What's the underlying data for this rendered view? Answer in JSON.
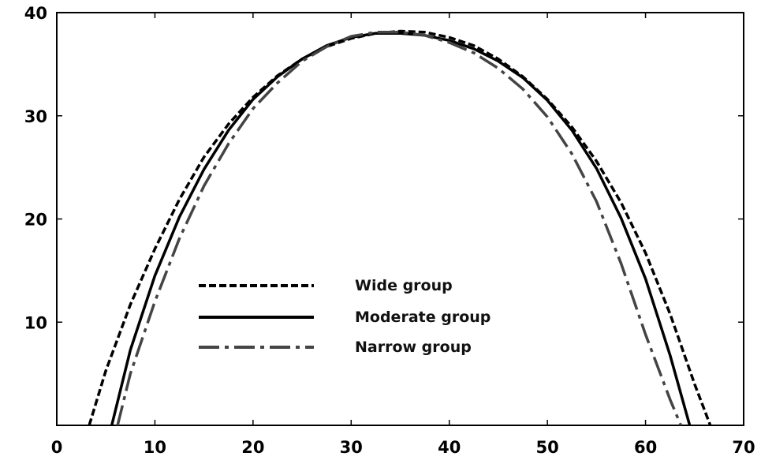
{
  "chart_data": {
    "type": "line",
    "title": "",
    "xlabel": "",
    "ylabel": "",
    "xlim": [
      0,
      70
    ],
    "ylim": [
      0,
      40
    ],
    "x_ticks": [
      0,
      10,
      20,
      30,
      40,
      50,
      60,
      70
    ],
    "y_ticks": [
      10,
      20,
      30,
      40
    ],
    "x_tick_labels": [
      "0",
      "10",
      "20",
      "30",
      "40",
      "50",
      "60",
      "70"
    ],
    "y_tick_labels": [
      "10",
      "20",
      "30",
      "40"
    ],
    "grid": false,
    "legend_position": "center-left",
    "series": [
      {
        "name": "Wide group",
        "style": "dashed",
        "color": "#000000",
        "x": [
          3.3,
          5,
          7.5,
          10,
          12.5,
          15,
          17.5,
          20,
          22.5,
          25,
          27.5,
          30,
          32.5,
          35,
          37.5,
          40,
          42.5,
          45,
          47.5,
          50,
          52.5,
          55,
          57.5,
          60,
          62.5,
          65,
          66.6
        ],
        "y": [
          0,
          5.3,
          11.7,
          17.1,
          21.9,
          26.0,
          29.2,
          31.8,
          33.9,
          35.5,
          36.7,
          37.5,
          38.0,
          38.2,
          38.1,
          37.6,
          36.8,
          35.5,
          33.8,
          31.6,
          28.9,
          25.6,
          21.6,
          16.7,
          10.8,
          4.0,
          0
        ]
      },
      {
        "name": "Moderate group",
        "style": "solid",
        "color": "#000000",
        "x": [
          5.6,
          7.5,
          10,
          12.5,
          15,
          17.5,
          20,
          22.5,
          25,
          27.5,
          30,
          32.5,
          35,
          37.5,
          40,
          42.5,
          45,
          47.5,
          50,
          52.5,
          55,
          57.5,
          60,
          62.5,
          64.5
        ],
        "y": [
          0,
          7.3,
          14.5,
          20.2,
          24.8,
          28.6,
          31.6,
          33.8,
          35.5,
          36.8,
          37.6,
          38.0,
          38.0,
          37.8,
          37.3,
          36.5,
          35.3,
          33.7,
          31.5,
          28.6,
          24.9,
          20.1,
          14.2,
          6.8,
          0
        ]
      },
      {
        "name": "Narrow group",
        "style": "dashdot",
        "color": "#444444",
        "x": [
          6.2,
          7.5,
          10,
          12.5,
          15,
          17.5,
          20,
          22.5,
          25,
          27.5,
          30,
          32.5,
          35,
          37.5,
          40,
          42.5,
          45,
          47.5,
          50,
          52.5,
          55,
          57.5,
          60,
          62.5,
          63.6
        ],
        "y": [
          0,
          5.0,
          12.0,
          18.1,
          23.2,
          27.3,
          30.7,
          33.2,
          35.3,
          36.7,
          37.7,
          38.1,
          38.1,
          37.8,
          37.1,
          36.1,
          34.6,
          32.6,
          29.9,
          26.3,
          21.7,
          15.7,
          8.8,
          2.5,
          0
        ]
      }
    ]
  }
}
